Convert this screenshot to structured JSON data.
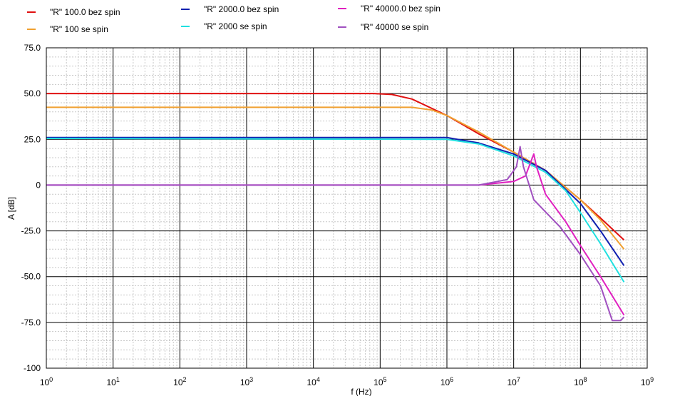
{
  "chart_data": {
    "type": "line",
    "xscale": "log",
    "xlabel": "f (Hz)",
    "ylabel": "A [dB]",
    "xlim": [
      1,
      1000000000
    ],
    "ylim": [
      -100,
      75
    ],
    "grid": true,
    "legend_position": "top",
    "x_ticks": [
      {
        "base": "10",
        "exp": "0"
      },
      {
        "base": "10",
        "exp": "1"
      },
      {
        "base": "10",
        "exp": "2"
      },
      {
        "base": "10",
        "exp": "3"
      },
      {
        "base": "10",
        "exp": "4"
      },
      {
        "base": "10",
        "exp": "5"
      },
      {
        "base": "10",
        "exp": "6"
      },
      {
        "base": "10",
        "exp": "7"
      },
      {
        "base": "10",
        "exp": "8"
      },
      {
        "base": "10",
        "exp": "9"
      }
    ],
    "y_ticks": [
      "75.0",
      "50.0",
      "25.0",
      "0",
      "-25.0",
      "-50.0",
      "-75.0",
      "-100"
    ],
    "y_tick_values": [
      75,
      50,
      25,
      0,
      -25,
      -50,
      -75,
      -100
    ],
    "series": [
      {
        "name": "\"R\" 100.0 bez spin",
        "color": "#e01010",
        "x": [
          1,
          80000,
          150000,
          300000,
          1000000,
          3000000,
          10000000,
          30000000,
          100000000,
          200000000,
          450000000
        ],
        "y": [
          50,
          50,
          49.5,
          47,
          38,
          28,
          18,
          8,
          -8,
          -18,
          -30
        ]
      },
      {
        "name": "\"R\" 100 se spin",
        "color": "#f0a030",
        "x": [
          1,
          300000,
          600000,
          1000000,
          3000000,
          10000000,
          30000000,
          100000000,
          200000000,
          450000000
        ],
        "y": [
          42.5,
          42.5,
          41,
          38,
          29,
          18,
          8,
          -8,
          -19,
          -35
        ]
      },
      {
        "name": "\"R\" 2000.0 bez spin",
        "color": "#1020b0",
        "x": [
          1,
          1000000,
          3000000,
          10000000,
          30000000,
          100000000,
          200000000,
          450000000
        ],
        "y": [
          26,
          26,
          23,
          17,
          8,
          -10,
          -25,
          -44
        ]
      },
      {
        "name": "\"R\" 2000 se spin",
        "color": "#20e0e0",
        "x": [
          1,
          1000000,
          3000000,
          10000000,
          30000000,
          60000000,
          100000000,
          200000000,
          450000000
        ],
        "y": [
          25.5,
          25,
          22.5,
          16,
          7,
          -3,
          -15,
          -32,
          -53
        ]
      },
      {
        "name": "\"R\" 40000.0 bez spin",
        "color": "#e020c0",
        "x": [
          1,
          3000000,
          10000000,
          15000000,
          20000000,
          22000000,
          30000000,
          60000000,
          100000000,
          200000000,
          450000000
        ],
        "y": [
          0,
          0,
          2,
          5,
          17,
          10,
          -5,
          -20,
          -33,
          -50,
          -71
        ]
      },
      {
        "name": "\"R\" 40000 se spin",
        "color": "#a050c0",
        "x": [
          1,
          3000000,
          8000000,
          11000000,
          12500000,
          14000000,
          20000000,
          50000000,
          100000000,
          200000000,
          300000000,
          400000000,
          450000000
        ],
        "y": [
          0,
          0,
          3,
          10,
          21,
          10,
          -8,
          -23,
          -38,
          -55,
          -74,
          -74,
          -72
        ]
      }
    ]
  }
}
